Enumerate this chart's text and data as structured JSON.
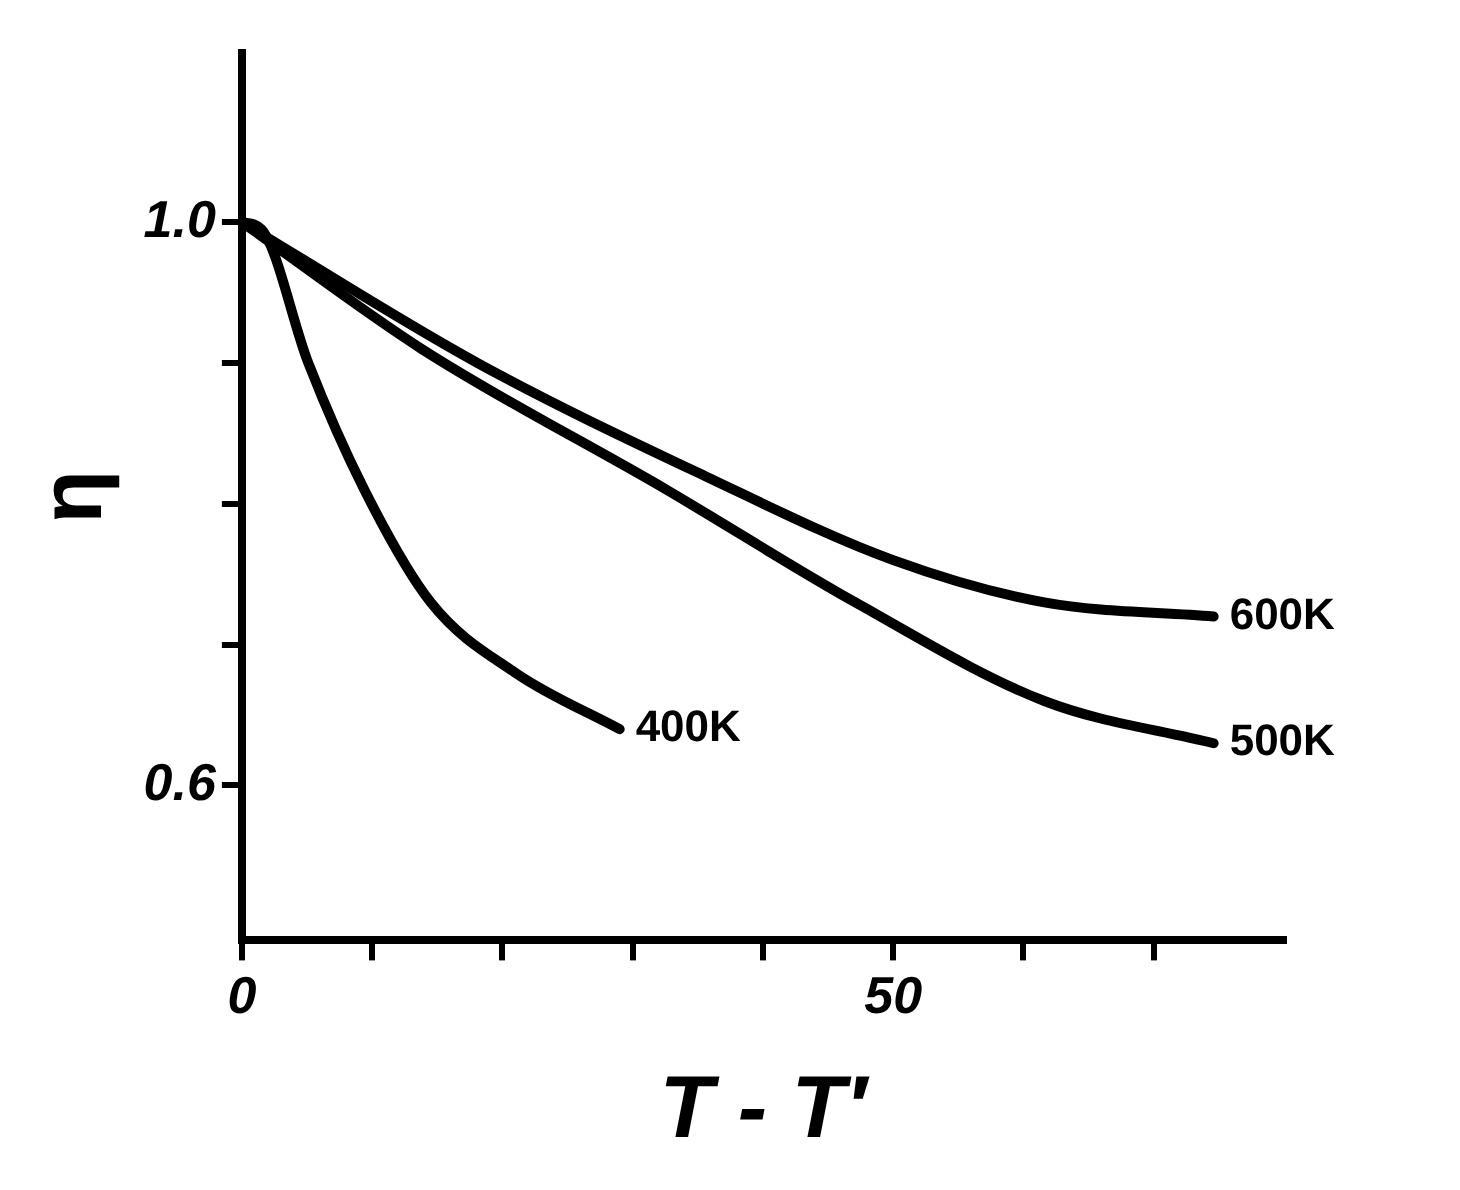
{
  "chart_data": {
    "type": "line",
    "xlabel": "T - T′",
    "ylabel": "η",
    "xlim": [
      0,
      80
    ],
    "ylim": [
      0.49,
      1.12
    ],
    "xticks": [
      0,
      {
        "value": 10,
        "label": null
      },
      {
        "value": 20,
        "label": null
      },
      {
        "value": 30,
        "label": null
      },
      {
        "value": 40,
        "label": null
      },
      50,
      {
        "value": 60,
        "label": null
      },
      {
        "value": 70,
        "label": null
      }
    ],
    "yticks": [
      {
        "value": 0.6,
        "label": "0.6"
      },
      {
        "value": 0.7,
        "label": null
      },
      {
        "value": 0.8,
        "label": null
      },
      {
        "value": 0.9,
        "label": null
      },
      {
        "value": 1.0,
        "label": "1.0"
      }
    ],
    "grid": false,
    "legend": false,
    "marker": "none",
    "line_style": "solid",
    "series": [
      {
        "name": "400K",
        "color": "#000000",
        "x": [
          0,
          1.5,
          5.1,
          9.4,
          14.5,
          21,
          29
        ],
        "values": [
          1.0,
          0.995,
          0.9,
          0.81,
          0.73,
          0.68,
          0.64
        ]
      },
      {
        "name": "500K",
        "color": "#000000",
        "x": [
          0,
          13.8,
          32.6,
          47.1,
          61.6,
          74.6
        ],
        "values": [
          1.0,
          0.91,
          0.81,
          0.73,
          0.66,
          0.63
        ]
      },
      {
        "name": "600K",
        "color": "#000000",
        "x": [
          0,
          18.1,
          35.5,
          50,
          61.6,
          74.6
        ],
        "values": [
          1.0,
          0.9,
          0.82,
          0.76,
          0.73,
          0.72
        ]
      }
    ]
  }
}
